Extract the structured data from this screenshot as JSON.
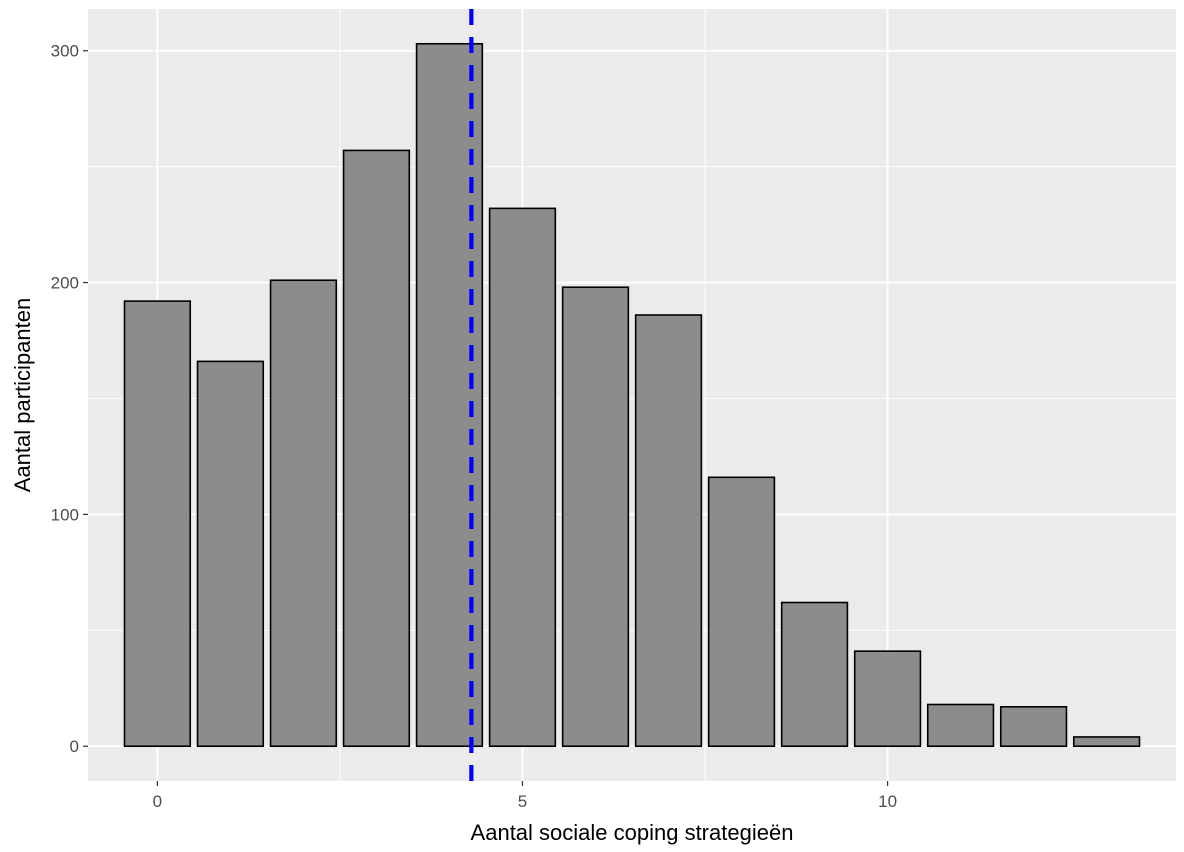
{
  "chart_data": {
    "type": "bar",
    "x": [
      0,
      1,
      2,
      3,
      4,
      5,
      6,
      7,
      8,
      9,
      10,
      11,
      12,
      13
    ],
    "values": [
      192,
      166,
      201,
      257,
      303,
      232,
      198,
      186,
      116,
      62,
      41,
      18,
      17,
      4
    ],
    "xlabel": "Aantal sociale coping strategieën",
    "ylabel": "Aantal participanten",
    "xlim": [
      -0.95,
      13.95
    ],
    "ylim": [
      -15,
      318
    ],
    "x_ticks": [
      0,
      5,
      10
    ],
    "y_ticks": [
      0,
      100,
      200,
      300
    ],
    "grid": true,
    "mean_line": {
      "x": 4.3,
      "color": "#0000ff",
      "style": "dashed"
    },
    "colors": {
      "bar_fill": "#8c8c8c",
      "bar_stroke": "#000000",
      "panel": "#ebebeb",
      "grid": "#ffffff"
    }
  }
}
